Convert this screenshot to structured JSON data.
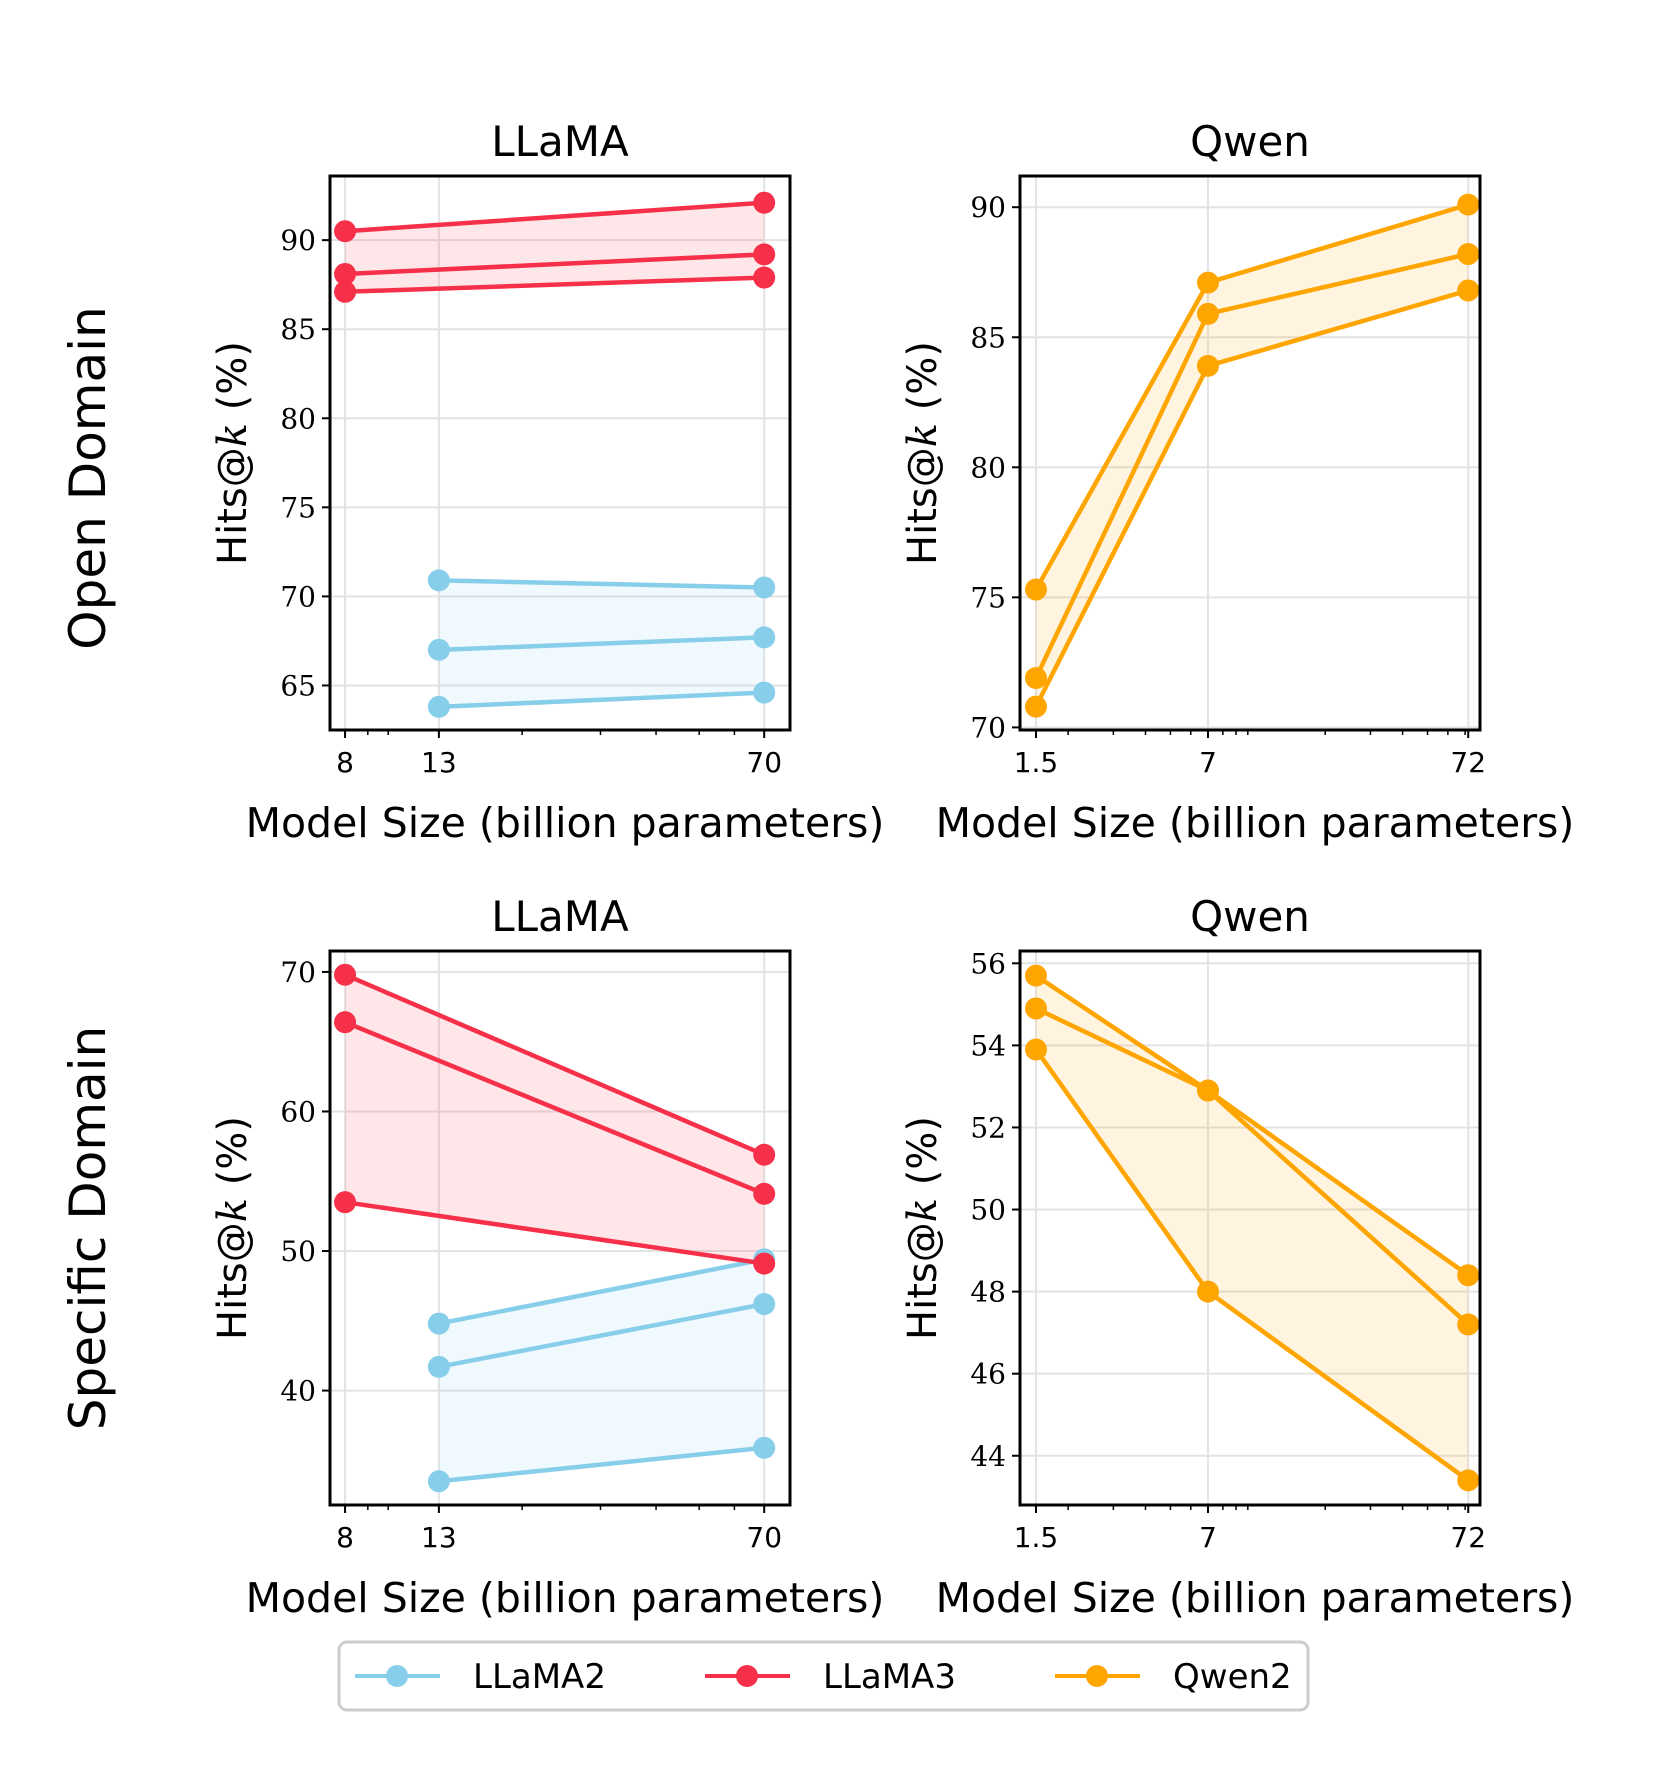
{
  "figure": {
    "row_labels": [
      "Open Domain",
      "Specific Domain"
    ],
    "legend": [
      {
        "name": "LLaMA2",
        "color": "#87CEEB"
      },
      {
        "name": "LLaMA3",
        "color": "#F7304A"
      },
      {
        "name": "Qwen2",
        "color": "#FFA500"
      }
    ]
  },
  "chart_data": [
    {
      "type": "line",
      "id": "open-llama",
      "title": "LLaMA",
      "xlabel": "Model Size (billion parameters)",
      "ylabel_prefix": "Hits@",
      "ylabel_var": "k",
      "ylabel_suffix": " (%)",
      "xscale": "log",
      "xlim": [
        7.4,
        80
      ],
      "xticks": [
        8,
        13,
        70
      ],
      "xtick_labels": [
        "8",
        "13",
        "70"
      ],
      "ylim": [
        62.5,
        93.6
      ],
      "yticks": [
        65,
        70,
        75,
        80,
        85,
        90
      ],
      "series": [
        {
          "name": "LLaMA2",
          "color": "#87CEEB",
          "x": [
            13,
            70
          ],
          "lines": [
            [
              70.9,
              70.5
            ],
            [
              67.0,
              67.7
            ],
            [
              63.8,
              64.6
            ]
          ]
        },
        {
          "name": "LLaMA3",
          "color": "#F7304A",
          "x": [
            8,
            70
          ],
          "lines": [
            [
              90.5,
              92.1
            ],
            [
              88.1,
              89.2
            ],
            [
              87.1,
              87.9
            ]
          ]
        }
      ]
    },
    {
      "type": "line",
      "id": "open-qwen",
      "title": "Qwen",
      "xlabel": "Model Size (billion parameters)",
      "ylabel_prefix": "Hits@",
      "ylabel_var": "k",
      "ylabel_suffix": " (%)",
      "xscale": "log",
      "xlim": [
        1.3,
        80
      ],
      "xticks": [
        1.5,
        7,
        72
      ],
      "xtick_labels": [
        "1.5",
        "7",
        "72"
      ],
      "ylim": [
        69.9,
        91.2
      ],
      "yticks": [
        70,
        75,
        80,
        85,
        90
      ],
      "series": [
        {
          "name": "Qwen2",
          "color": "#FFA500",
          "x": [
            1.5,
            7,
            72
          ],
          "lines": [
            [
              75.3,
              87.1,
              90.1
            ],
            [
              71.9,
              85.9,
              88.2
            ],
            [
              70.8,
              83.9,
              86.8
            ]
          ]
        }
      ]
    },
    {
      "type": "line",
      "id": "specific-llama",
      "title": "LLaMA",
      "xlabel": "Model Size (billion parameters)",
      "ylabel_prefix": "Hits@",
      "ylabel_var": "k",
      "ylabel_suffix": " (%)",
      "xscale": "log",
      "xlim": [
        7.4,
        80
      ],
      "xticks": [
        8,
        13,
        70
      ],
      "xtick_labels": [
        "8",
        "13",
        "70"
      ],
      "ylim": [
        31.8,
        71.5
      ],
      "yticks": [
        40,
        50,
        60,
        70
      ],
      "series": [
        {
          "name": "LLaMA2",
          "color": "#87CEEB",
          "x": [
            13,
            70
          ],
          "lines": [
            [
              44.8,
              49.4
            ],
            [
              41.7,
              46.2
            ],
            [
              33.5,
              35.9
            ]
          ]
        },
        {
          "name": "LLaMA3",
          "color": "#F7304A",
          "x": [
            8,
            70
          ],
          "lines": [
            [
              69.8,
              56.9
            ],
            [
              66.4,
              54.1
            ],
            [
              53.5,
              49.1
            ]
          ]
        }
      ]
    },
    {
      "type": "line",
      "id": "specific-qwen",
      "title": "Qwen",
      "xlabel": "Model Size (billion parameters)",
      "ylabel_prefix": "Hits@",
      "ylabel_var": "k",
      "ylabel_suffix": " (%)",
      "xscale": "log",
      "xlim": [
        1.3,
        80
      ],
      "xticks": [
        1.5,
        7,
        72
      ],
      "xtick_labels": [
        "1.5",
        "7",
        "72"
      ],
      "ylim": [
        42.8,
        56.3
      ],
      "yticks": [
        44,
        46,
        48,
        50,
        52,
        54,
        56
      ],
      "series": [
        {
          "name": "Qwen2",
          "color": "#FFA500",
          "x": [
            1.5,
            7,
            72
          ],
          "lines": [
            [
              55.7,
              52.9,
              48.4
            ],
            [
              54.9,
              52.9,
              47.2
            ],
            [
              53.9,
              48.0,
              43.4
            ]
          ]
        }
      ]
    }
  ]
}
